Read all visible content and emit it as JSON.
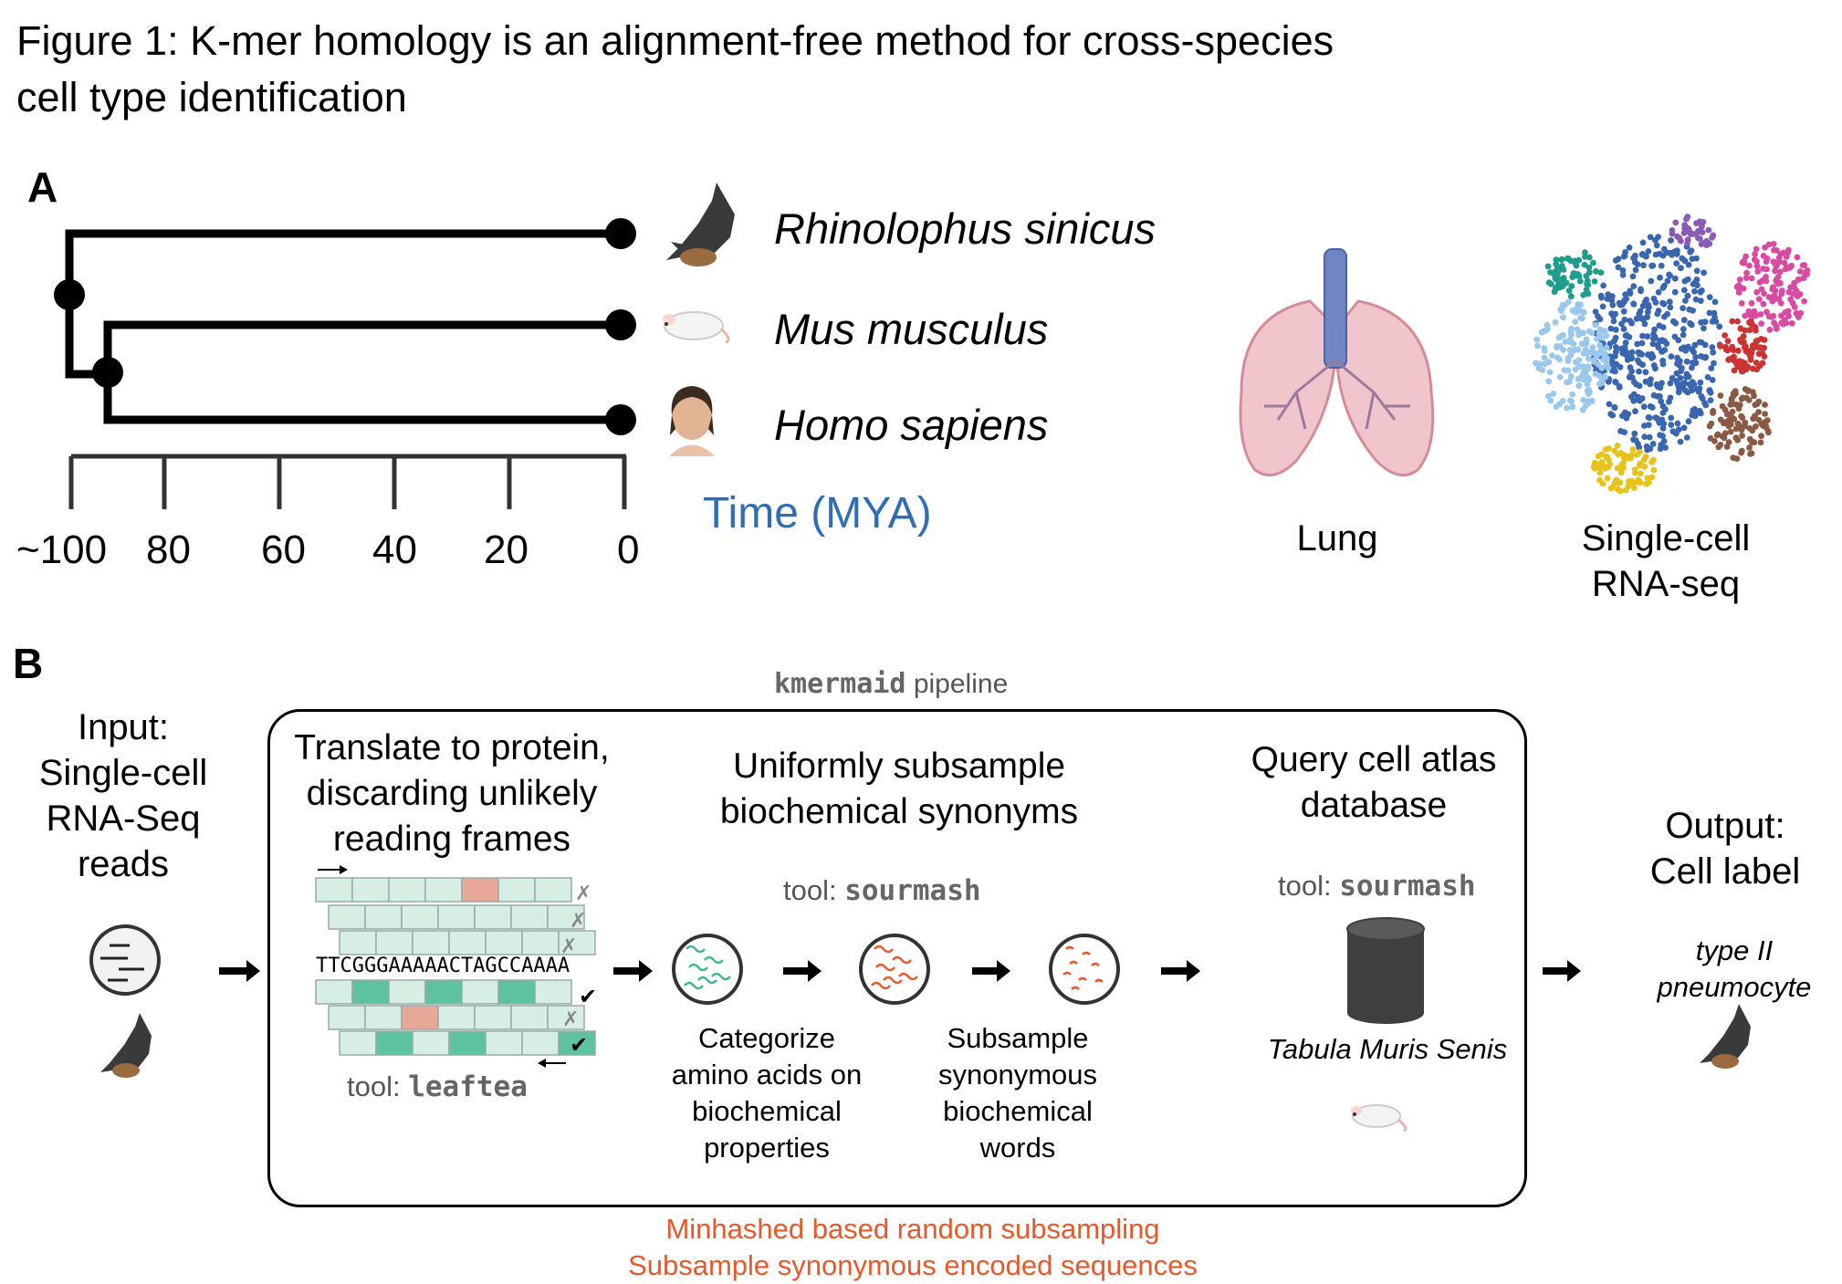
{
  "figure": {
    "title_line1": "Figure 1: K-mer homology is an alignment-free method for cross-species",
    "title_line2": "cell type identification"
  },
  "panel_a": {
    "label": "A",
    "species": [
      "Rhinolophus sinicus",
      "Mus musculus",
      "Homo sapiens"
    ],
    "time_axis": {
      "label": "Time (MYA)",
      "ticks": [
        "~100",
        "80",
        "60",
        "40",
        "20",
        "0"
      ]
    },
    "organ_label": "Lung",
    "scrna_label_line1": "Single-cell",
    "scrna_label_line2": "RNA-seq",
    "cluster_colors": [
      "#3a66b0",
      "#9ac8ec",
      "#1e9c8c",
      "#8a5bb4",
      "#d94aa2",
      "#cc3333",
      "#8b5a45",
      "#e8c31e"
    ]
  },
  "panel_b": {
    "label": "B",
    "pipeline_tool": "kmermaid",
    "pipeline_suffix": " pipeline",
    "input_lines": [
      "Input:",
      "Single-cell",
      "RNA-Seq",
      "reads"
    ],
    "step1_lines": [
      "Translate to protein,",
      "discarding unlikely",
      "reading frames"
    ],
    "step1_tool_prefix": "tool: ",
    "step1_tool": "leaftea",
    "sequence": "TTCGGGAAAAACTAGCCAAAA",
    "step2_lines": [
      "Uniformly subsample",
      "biochemical synonyms"
    ],
    "step2_tool_prefix": "tool: ",
    "step2_tool": "sourmash",
    "categorize_lines": [
      "Categorize",
      "amino acids on",
      "biochemical",
      "properties"
    ],
    "subsample_lines": [
      "Subsample",
      "synonymous",
      "biochemical",
      "words"
    ],
    "step3_lines": [
      "Query cell atlas",
      "database"
    ],
    "step3_tool_prefix": "tool: ",
    "step3_tool": "sourmash",
    "database_name": "Tabula Muris Senis",
    "output_lines": [
      "Output:",
      "Cell label"
    ],
    "output_label_lines": [
      "type II",
      "pneumocyte"
    ],
    "footer_line1": "Minhashed based random subsampling",
    "footer_line2": "Subsample synonymous encoded sequences",
    "colors": {
      "teal": "#5cc2a0",
      "light_teal": "#d7eee5",
      "salmon": "#e8a898",
      "orange": "#e8582a"
    },
    "check_marks": [
      "✗",
      "✗",
      "✗",
      "✔",
      "✗",
      "✔"
    ]
  }
}
